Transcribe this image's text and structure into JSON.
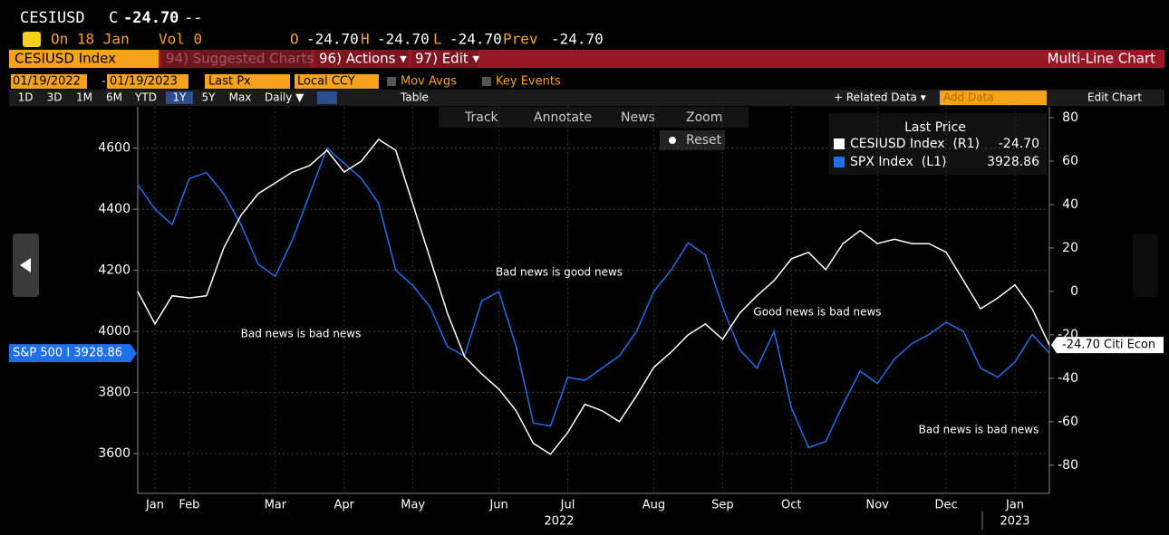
{
  "header": {
    "ticker": "CESIUSD",
    "change_flag": "C",
    "last": "-24.70",
    "change": "--",
    "date": "On 18 Jan",
    "volume": "Vol 0",
    "open_label": "O",
    "open": "-24.70",
    "high_label": "H",
    "high": "-24.70",
    "low_label": "L",
    "low": "-24.70",
    "prev_label": "Prev",
    "prev": "-24.70"
  },
  "menu": {
    "security": "CESIUSD Index",
    "suggested": "94) Suggested Charts",
    "actions": "96) Actions ▾",
    "edit": "97) Edit ▾",
    "chart_kind": "Multi-Line Chart"
  },
  "controls": {
    "start": "01/19/2022",
    "dash": "-",
    "end": "01/19/2023",
    "field": "Last Px",
    "currency": "Local CCY",
    "mov_avgs": "Mov Avgs",
    "key_events": "Key Events"
  },
  "periods": [
    "1D",
    "3D",
    "1M",
    "6M",
    "YTD",
    "1Y",
    "5Y",
    "Max"
  ],
  "toolbar": {
    "frequency": "Daily ▼",
    "table": "Table",
    "related": "+ Related Data ▾",
    "add_data": "Add Data",
    "edit_chart": "Edit Chart",
    "track": "Track",
    "annotate": "Annotate",
    "news": "News",
    "zoom": "Zoom",
    "reset": "Reset"
  },
  "chart_data": {
    "type": "line",
    "categories": [
      null,
      "Jan",
      null,
      "Feb",
      null,
      null,
      null,
      null,
      "Mar",
      null,
      null,
      null,
      "Apr",
      null,
      null,
      null,
      "May",
      null,
      null,
      null,
      null,
      "Jun",
      null,
      null,
      null,
      "Jul",
      null,
      null,
      null,
      null,
      "Aug",
      null,
      null,
      null,
      "Sep",
      null,
      null,
      null,
      "Oct",
      null,
      null,
      null,
      null,
      "Nov",
      null,
      null,
      null,
      "Dec",
      null,
      null,
      null,
      "Jan",
      null,
      null
    ],
    "years": [
      "2022",
      "2023"
    ],
    "legend_title": "Last Price",
    "series": [
      {
        "name": "CESIUSD Index  (R1)",
        "color": "#ffffff",
        "axis": "y2",
        "last_label": "-24.70",
        "axis_tag": "-24.70 Citi Econ",
        "values": [
          0,
          -15,
          -2,
          -3,
          -2,
          20,
          35,
          45,
          50,
          55,
          58,
          65,
          55,
          60,
          70,
          65,
          40,
          15,
          -10,
          -30,
          -38,
          -45,
          -55,
          -70,
          -75,
          -65,
          -52,
          -55,
          -60,
          -48,
          -35,
          -28,
          -20,
          -15,
          -22,
          -10,
          -2,
          5,
          15,
          18,
          10,
          22,
          28,
          22,
          24,
          22,
          22,
          18,
          5,
          -8,
          -3,
          3,
          -8,
          -24.7
        ]
      },
      {
        "name": "SPX Index  (L1)",
        "color": "#1f6fe8",
        "axis": "y",
        "last_label": "3928.86",
        "axis_tag": "S&P 500 I 3928.86",
        "values": [
          4480,
          4400,
          4350,
          4500,
          4520,
          4450,
          4350,
          4220,
          4180,
          4300,
          4450,
          4600,
          4550,
          4500,
          4420,
          4200,
          4150,
          4080,
          3950,
          3920,
          4100,
          4130,
          3950,
          3700,
          3690,
          3850,
          3840,
          3880,
          3920,
          4000,
          4130,
          4200,
          4290,
          4250,
          4080,
          3940,
          3880,
          4000,
          3750,
          3620,
          3640,
          3760,
          3870,
          3830,
          3910,
          3960,
          3990,
          4030,
          4000,
          3880,
          3850,
          3900,
          3990,
          3928.86
        ]
      }
    ],
    "ylim": [
      3470,
      4735
    ],
    "yticks": [
      3600,
      3800,
      4000,
      4200,
      4400,
      4600
    ],
    "y2lim": [
      -93,
      85
    ],
    "y2ticks": [
      -80,
      -60,
      -40,
      -20,
      0,
      20,
      40,
      60,
      80
    ],
    "grid": true,
    "annotations": [
      "Bad news is bad news",
      "Bad news is good news",
      "Good news is bad news",
      "Bad news is bad news"
    ]
  }
}
